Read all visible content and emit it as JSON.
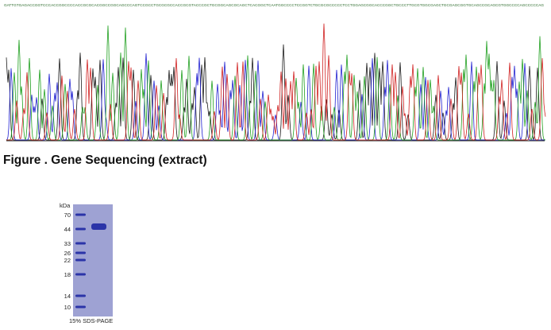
{
  "sequence": "GATTGTGAGACCGGTCCCACCGGCCCCACCGCGCACGGCCGGCAGCCCAGTCCGCCTGCGCGCCACCGCGTACCCGCTGCGGCAGCGCAGCTCACGGCTCAATGGCCCCTCCGGTCTGCGCGCCCCCTCCTGGAGCGGCACCCGGCTGCCCTTGCGTGGCGAGCTGCGAGCGGTGCAGCCGCAGCGTGGCCCCAGCCCCCAG",
  "figure_caption": "Figure . Gene Sequencing (extract)",
  "gel": {
    "unit_label": "kDa",
    "ladder": [
      "70",
      "44",
      "33",
      "26",
      "22",
      "18",
      "14",
      "10"
    ],
    "caption": "15% SDS-PAGE"
  }
}
